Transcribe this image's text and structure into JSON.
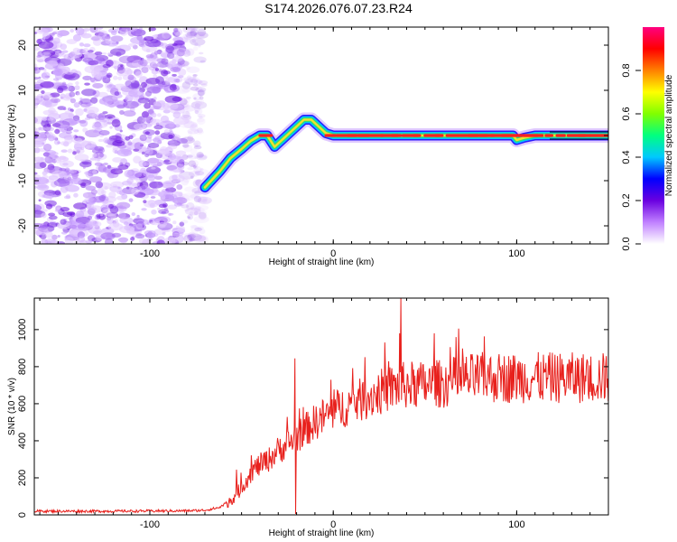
{
  "title": "S174.2026.076.07.23.R24",
  "chart_data": [
    {
      "type": "heatmap",
      "xlabel": "Height of straight line (km)",
      "ylabel": "Frequency (Hz)",
      "xlim": [
        -163,
        150
      ],
      "ylim": [
        -24,
        24
      ],
      "xticks": [
        -100,
        0,
        100
      ],
      "yticks": [
        -20,
        -10,
        0,
        10,
        20
      ],
      "noise_region_x": [
        -163,
        -70
      ],
      "tone_track": {
        "x": [
          -70,
          -62,
          -56,
          -50,
          -45,
          -40,
          -36,
          -32,
          -28,
          -24,
          -20,
          -16,
          -12,
          -8,
          -4,
          0,
          20,
          40,
          60,
          80,
          98,
          100,
          104,
          110,
          120,
          150
        ],
        "freq": [
          -11.5,
          -8,
          -5,
          -3,
          -1.2,
          0,
          0,
          -2.5,
          -1,
          0.5,
          2,
          3.5,
          3.5,
          2,
          0.5,
          0,
          0,
          0,
          0,
          0,
          0,
          -1,
          -0.5,
          0,
          0,
          0
        ]
      },
      "colorbar": {
        "label": "Normalized spectral amplitude",
        "ticks": [
          "0.0",
          "0.2",
          "0.4",
          "0.6",
          "0.8"
        ],
        "range": [
          0,
          1
        ],
        "colors": [
          "#ffffff",
          "#c080ff",
          "#6a00e0",
          "#0000ff",
          "#00c8ff",
          "#00ff80",
          "#80ff00",
          "#ffff00",
          "#ff8000",
          "#ff0000",
          "#ff0080"
        ]
      }
    },
    {
      "type": "line",
      "xlabel": "Height of straight line (km)",
      "ylabel": "SNR (10 * v/v)",
      "xlim": [
        -163,
        150
      ],
      "ylim": [
        0,
        1170
      ],
      "xticks": [
        -100,
        0,
        100
      ],
      "yticks": [
        0,
        200,
        400,
        600,
        800,
        1000
      ],
      "color": "#e8201c",
      "x": [
        -163,
        -120,
        -80,
        -70,
        -62,
        -56,
        -52,
        -48,
        -44,
        -40,
        -35,
        -30,
        -25,
        -20,
        -15,
        -10,
        -5,
        0,
        10,
        20,
        30,
        40,
        50,
        60,
        70,
        80,
        90,
        100,
        110,
        120,
        130,
        140,
        150
      ],
      "mean": [
        20,
        20,
        22,
        25,
        40,
        80,
        120,
        180,
        240,
        270,
        300,
        350,
        380,
        420,
        460,
        500,
        530,
        560,
        600,
        640,
        680,
        700,
        700,
        710,
        730,
        740,
        740,
        740,
        740,
        740,
        740,
        740,
        740
      ],
      "spikes": [
        {
          "x": -21,
          "value": 845
        },
        {
          "x": -20.5,
          "value": 5
        },
        {
          "x": 37,
          "value": 1170
        },
        {
          "x": 36,
          "value": 980
        },
        {
          "x": 55,
          "value": 980
        },
        {
          "x": 67,
          "value": 960
        }
      ]
    }
  ]
}
